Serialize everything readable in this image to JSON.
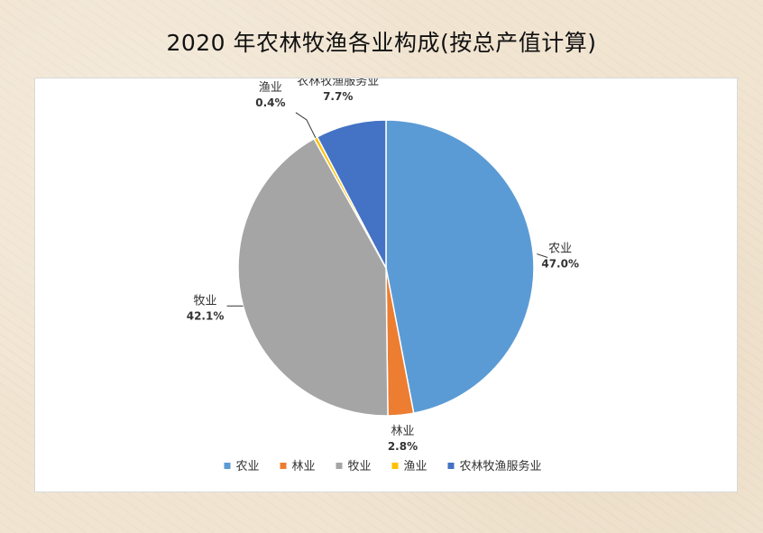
{
  "title": "2020 年农林牧渔各业构成(按总产值计算)",
  "chart_data": {
    "type": "pie",
    "title": "2020 年农林牧渔各业构成(按总产值计算)",
    "legend_position": "bottom",
    "slices": [
      {
        "name": "农业",
        "value": 47.0,
        "label": "47.0%",
        "color": "#5b9bd5"
      },
      {
        "name": "林业",
        "value": 2.8,
        "label": "2.8%",
        "color": "#ed7d31"
      },
      {
        "name": "牧业",
        "value": 42.1,
        "label": "42.1%",
        "color": "#a5a5a5"
      },
      {
        "name": "渔业",
        "value": 0.4,
        "label": "0.4%",
        "color": "#ffc000"
      },
      {
        "name": "农林牧渔服务业",
        "value": 7.7,
        "label": "7.7%",
        "color": "#4472c4"
      }
    ]
  }
}
